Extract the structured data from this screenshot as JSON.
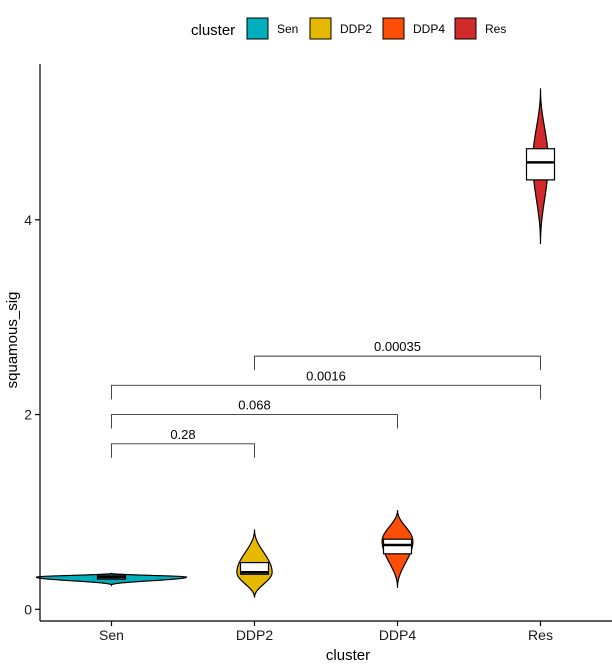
{
  "chart_data": {
    "type": "violin",
    "xlabel": "cluster",
    "ylabel": "squamous_sig",
    "categories": [
      "Sen",
      "DDP2",
      "DDP4",
      "Res"
    ],
    "ylim": [
      -0.12,
      5.6
    ],
    "yticks": [
      0,
      2,
      4
    ],
    "ytick_labels": [
      "0",
      "2",
      "4"
    ],
    "legend": {
      "title": "cluster",
      "position": "top",
      "entries": [
        "Sen",
        "DDP2",
        "DDP4",
        "Res"
      ]
    },
    "colors": {
      "Sen": "#00AFBB",
      "DDP2": "#E7B800",
      "DDP4": "#FC4E07",
      "Res": "#D02A2A"
    },
    "series": [
      {
        "name": "Sen",
        "min": 0.25,
        "q1": 0.31,
        "median": 0.33,
        "q3": 0.35,
        "max": 0.37,
        "peak": 0.33
      },
      {
        "name": "DDP2",
        "min": 0.12,
        "q1": 0.36,
        "median": 0.38,
        "q3": 0.48,
        "max": 0.82,
        "peak": 0.38
      },
      {
        "name": "DDP4",
        "min": 0.22,
        "q1": 0.57,
        "median": 0.66,
        "q3": 0.72,
        "max": 1.02,
        "peak": 0.7
      },
      {
        "name": "Res",
        "min": 3.75,
        "q1": 4.41,
        "median": 4.59,
        "q3": 4.73,
        "max": 5.35,
        "peak": 4.6
      }
    ],
    "comparisons": [
      {
        "from": "Sen",
        "to": "DDP2",
        "y": 1.7,
        "label": "0.28"
      },
      {
        "from": "Sen",
        "to": "DDP4",
        "y": 2.0,
        "label": "0.068"
      },
      {
        "from": "Sen",
        "to": "Res",
        "y": 2.3,
        "label": "0.0016"
      },
      {
        "from": "DDP2",
        "to": "Res",
        "y": 2.6,
        "label": "0.00035"
      }
    ]
  }
}
